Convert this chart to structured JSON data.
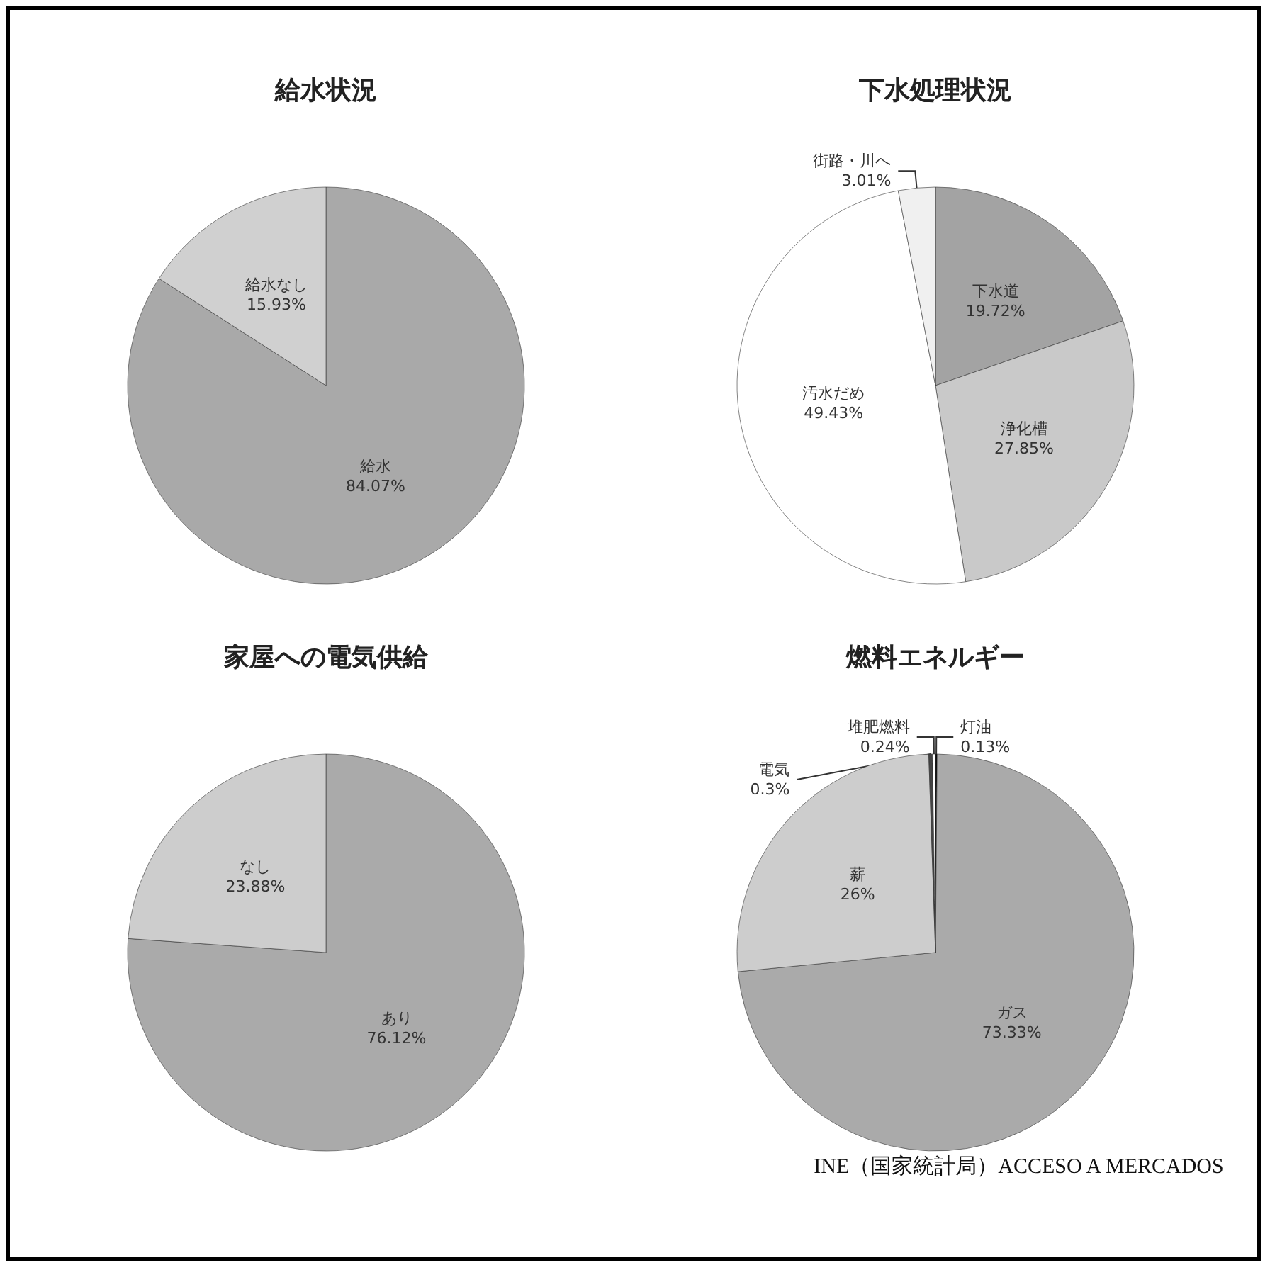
{
  "chart_data": [
    {
      "type": "pie",
      "title": "給水状況",
      "categories": [
        "給水",
        "給水なし"
      ],
      "values": [
        84.07,
        15.93
      ],
      "colors": [
        "#a9a9a9",
        "#d0d0d0"
      ],
      "value_labels": [
        "84.07%",
        "15.93%"
      ]
    },
    {
      "type": "pie",
      "title": "下水処理状況",
      "categories": [
        "下水道",
        "浄化槽",
        "汚水だめ",
        "街路・川へ"
      ],
      "values": [
        19.72,
        27.85,
        49.43,
        3.01
      ],
      "colors": [
        "#a3a3a3",
        "#c9c9c9",
        "#ffffff",
        "#f0f0f0"
      ],
      "value_labels": [
        "19.72%",
        "27.85%",
        "49.43%",
        "3.01%"
      ]
    },
    {
      "type": "pie",
      "title": "家屋への電気供給",
      "categories": [
        "あり",
        "なし"
      ],
      "values": [
        76.12,
        23.88
      ],
      "colors": [
        "#aaaaaa",
        "#cdcdcd"
      ],
      "value_labels": [
        "76.12%",
        "23.88%"
      ]
    },
    {
      "type": "pie",
      "title": "燃料エネルギー",
      "categories": [
        "灯油",
        "ガス",
        "薪",
        "電気",
        "堆肥燃料"
      ],
      "values": [
        0.13,
        73.33,
        26,
        0.3,
        0.24
      ],
      "colors": [
        "#000000",
        "#aaaaaa",
        "#cdcdcd",
        "#444444",
        "#ffffff"
      ],
      "value_labels": [
        "0.13%",
        "73.33%",
        "26%",
        "0.3%",
        "0.24%"
      ],
      "annotations": [
        "INE（国家統計局）ACCESO A MERCADOS"
      ]
    }
  ]
}
